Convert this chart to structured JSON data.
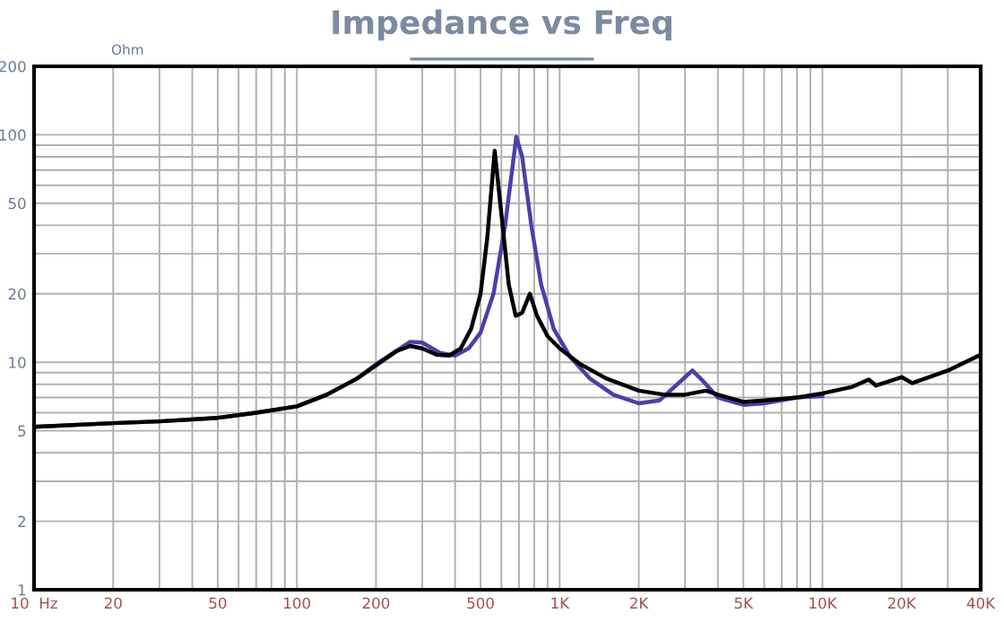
{
  "chart_data": {
    "type": "line",
    "title": "Impedance vs Freq",
    "ylabel": "Ohm",
    "log": "xy",
    "grid": true,
    "marker": "none",
    "line_style": "solid",
    "xlim": [
      10,
      40000
    ],
    "ylim": [
      1,
      200
    ],
    "xticks": [
      {
        "value": 10,
        "label": "10  Hz"
      },
      20,
      {
        "value": 30,
        "label": null
      },
      {
        "value": 40,
        "label": null
      },
      50,
      {
        "value": 60,
        "label": null
      },
      {
        "value": 70,
        "label": null
      },
      {
        "value": 80,
        "label": null
      },
      {
        "value": 90,
        "label": null
      },
      100,
      200,
      {
        "value": 300,
        "label": null
      },
      {
        "value": 400,
        "label": null
      },
      500,
      {
        "value": 600,
        "label": null
      },
      {
        "value": 700,
        "label": null
      },
      {
        "value": 800,
        "label": null
      },
      {
        "value": 900,
        "label": null
      },
      {
        "value": 1000,
        "label": "1K"
      },
      {
        "value": 2000,
        "label": "2K"
      },
      {
        "value": 3000,
        "label": null
      },
      {
        "value": 4000,
        "label": null
      },
      {
        "value": 5000,
        "label": "5K"
      },
      {
        "value": 6000,
        "label": null
      },
      {
        "value": 7000,
        "label": null
      },
      {
        "value": 8000,
        "label": null
      },
      {
        "value": 9000,
        "label": null
      },
      {
        "value": 10000,
        "label": "10K"
      },
      {
        "value": 20000,
        "label": "20K"
      },
      {
        "value": 30000,
        "label": null
      },
      {
        "value": 40000,
        "label": "40K"
      }
    ],
    "yticks": [
      1,
      2,
      {
        "value": 3,
        "label": null
      },
      {
        "value": 4,
        "label": null
      },
      5,
      {
        "value": 6,
        "label": null
      },
      {
        "value": 7,
        "label": null
      },
      {
        "value": 8,
        "label": null
      },
      {
        "value": 9,
        "label": null
      },
      10,
      20,
      {
        "value": 30,
        "label": null
      },
      {
        "value": 40,
        "label": null
      },
      50,
      {
        "value": 60,
        "label": null
      },
      {
        "value": 70,
        "label": null
      },
      {
        "value": 80,
        "label": null
      },
      {
        "value": 90,
        "label": null
      },
      100,
      200
    ],
    "series": [
      {
        "color": "#4b3fa8",
        "x": [
          10,
          20,
          30,
          50,
          70,
          100,
          130,
          170,
          200,
          270,
          300,
          350,
          400,
          450,
          500,
          560,
          620,
          684,
          720,
          780,
          850,
          950,
          1100,
          1300,
          1600,
          2000,
          2400,
          2800,
          3200,
          3500,
          4000,
          5000,
          6000,
          8000,
          10000
        ],
        "values": [
          5.2,
          5.4,
          5.5,
          5.7,
          6.0,
          6.4,
          7.2,
          8.5,
          9.8,
          12.3,
          12.2,
          11,
          10.7,
          11.5,
          13.5,
          20,
          40,
          98,
          80,
          40,
          22,
          14,
          10.5,
          8.5,
          7.2,
          6.6,
          6.8,
          8,
          9.2,
          8.3,
          7,
          6.5,
          6.6,
          7.0,
          7.1
        ]
      },
      {
        "color": "#000000",
        "x": [
          10,
          20,
          30,
          50,
          70,
          100,
          130,
          170,
          200,
          240,
          270,
          300,
          340,
          380,
          420,
          460,
          500,
          530,
          566,
          600,
          640,
          680,
          720,
          770,
          820,
          900,
          1000,
          1200,
          1500,
          2000,
          2500,
          3000,
          3600,
          4000,
          5000,
          6000,
          8000,
          10000,
          13000,
          15000,
          16000,
          20000,
          22000,
          30000,
          40000
        ],
        "values": [
          5.2,
          5.4,
          5.5,
          5.7,
          6.0,
          6.4,
          7.2,
          8.5,
          9.7,
          11.2,
          11.8,
          11.5,
          10.8,
          10.7,
          11.5,
          14,
          20,
          35,
          85,
          45,
          22,
          16,
          16.5,
          20,
          16,
          13,
          11.5,
          9.8,
          8.5,
          7.5,
          7.2,
          7.2,
          7.5,
          7.2,
          6.7,
          6.8,
          7.0,
          7.3,
          7.8,
          8.4,
          7.9,
          8.6,
          8.1,
          9.2,
          10.8
        ]
      }
    ]
  }
}
